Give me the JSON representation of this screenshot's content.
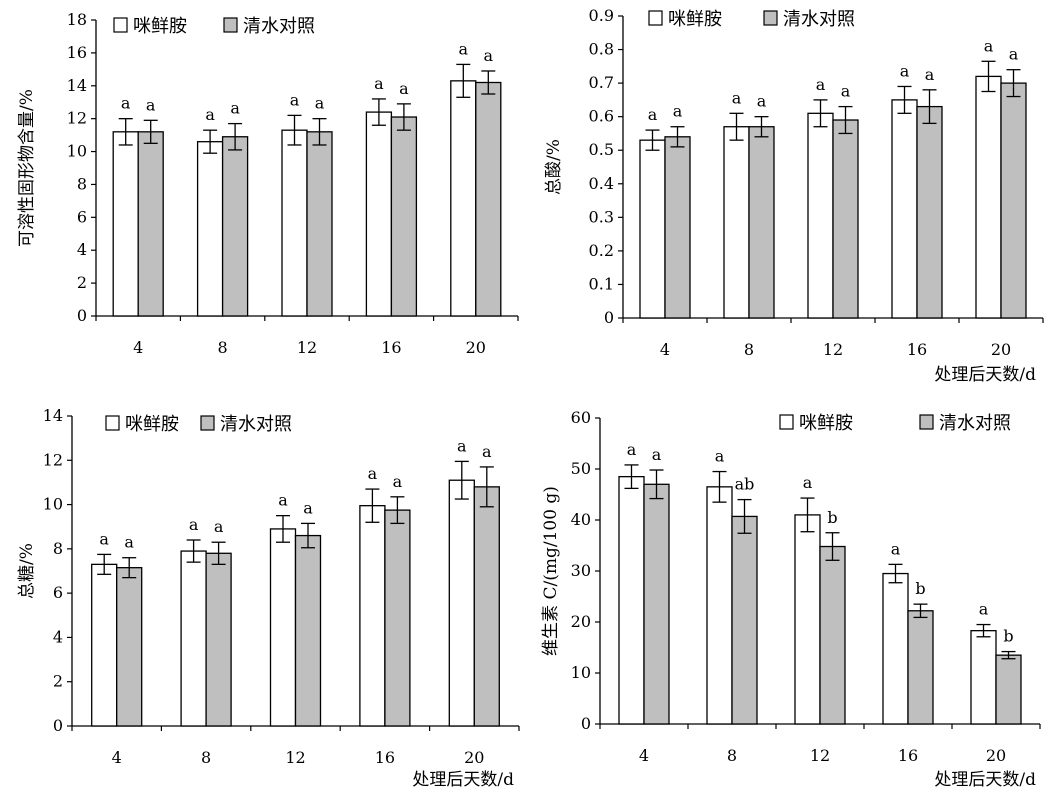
{
  "chart_data": [
    {
      "type": "bar",
      "categories": [
        "4",
        "8",
        "12",
        "16",
        "20"
      ],
      "xlabel": "",
      "ylabel": "可溶性固形物含量/%",
      "ylim": [
        0,
        18
      ],
      "yticks": [
        "0",
        "2",
        "4",
        "6",
        "8",
        "10",
        "12",
        "14",
        "16",
        "18"
      ],
      "legend": "top-left",
      "series": [
        {
          "name": "咪鲜胺",
          "color": "#ffffff",
          "values": [
            11.2,
            10.6,
            11.3,
            12.4,
            14.3
          ],
          "errors": [
            0.8,
            0.7,
            0.9,
            0.8,
            1.0
          ],
          "labels": [
            "a",
            "a",
            "a",
            "a",
            "a"
          ]
        },
        {
          "name": "清水对照",
          "color": "#bfbfbf",
          "values": [
            11.2,
            10.9,
            11.2,
            12.1,
            14.2
          ],
          "errors": [
            0.7,
            0.8,
            0.8,
            0.8,
            0.7
          ],
          "labels": [
            "a",
            "a",
            "a",
            "a",
            "a"
          ]
        }
      ]
    },
    {
      "type": "bar",
      "categories": [
        "4",
        "8",
        "12",
        "16",
        "20"
      ],
      "xlabel": "处理后天数/d",
      "ylabel": "总酸/%",
      "ylim": [
        0,
        0.9
      ],
      "yticks": [
        "0",
        "0.1",
        "0.2",
        "0.3",
        "0.4",
        "0.5",
        "0.6",
        "0.7",
        "0.8",
        "0.9"
      ],
      "legend": "top-left",
      "series": [
        {
          "name": "咪鲜胺",
          "color": "#ffffff",
          "values": [
            0.53,
            0.57,
            0.61,
            0.65,
            0.72
          ],
          "errors": [
            0.03,
            0.04,
            0.04,
            0.04,
            0.045
          ],
          "labels": [
            "a",
            "a",
            "a",
            "a",
            "a"
          ]
        },
        {
          "name": "清水对照",
          "color": "#bfbfbf",
          "values": [
            0.54,
            0.57,
            0.59,
            0.63,
            0.7
          ],
          "errors": [
            0.03,
            0.03,
            0.04,
            0.05,
            0.04
          ],
          "labels": [
            "a",
            "a",
            "a",
            "a",
            "a"
          ]
        }
      ]
    },
    {
      "type": "bar",
      "categories": [
        "4",
        "8",
        "12",
        "16",
        "20"
      ],
      "xlabel": "处理后天数/d",
      "ylabel": "总糖/%",
      "ylim": [
        0,
        14
      ],
      "yticks": [
        "0",
        "2",
        "4",
        "6",
        "8",
        "10",
        "12",
        "14"
      ],
      "legend": "top-left",
      "series": [
        {
          "name": "咪鲜胺",
          "color": "#ffffff",
          "values": [
            7.3,
            7.9,
            8.9,
            9.95,
            11.1
          ],
          "errors": [
            0.45,
            0.5,
            0.6,
            0.75,
            0.85
          ],
          "labels": [
            "a",
            "a",
            "a",
            "a",
            "a"
          ]
        },
        {
          "name": "清水对照",
          "color": "#bfbfbf",
          "values": [
            7.15,
            7.8,
            8.6,
            9.75,
            10.8
          ],
          "errors": [
            0.45,
            0.5,
            0.55,
            0.6,
            0.9
          ],
          "labels": [
            "a",
            "a",
            "a",
            "a",
            "a"
          ]
        }
      ]
    },
    {
      "type": "bar",
      "categories": [
        "4",
        "8",
        "12",
        "16",
        "20"
      ],
      "xlabel": "处理后天数/d",
      "ylabel": "维生素 C/(mg/100 g)",
      "ylim": [
        0,
        60
      ],
      "yticks": [
        "0",
        "10",
        "20",
        "30",
        "40",
        "50",
        "60"
      ],
      "legend": "top-right",
      "series": [
        {
          "name": "咪鲜胺",
          "color": "#ffffff",
          "values": [
            48.5,
            46.5,
            41.0,
            29.5,
            18.3
          ],
          "errors": [
            2.3,
            3.0,
            3.3,
            1.8,
            1.2
          ],
          "labels": [
            "a",
            "a",
            "a",
            "a",
            "a"
          ]
        },
        {
          "name": "清水对照",
          "color": "#bfbfbf",
          "values": [
            47.0,
            40.7,
            34.8,
            22.2,
            13.5
          ],
          "errors": [
            2.8,
            3.3,
            2.7,
            1.3,
            0.7
          ],
          "labels": [
            "a",
            "ab",
            "b",
            "b",
            "b"
          ]
        }
      ]
    }
  ]
}
